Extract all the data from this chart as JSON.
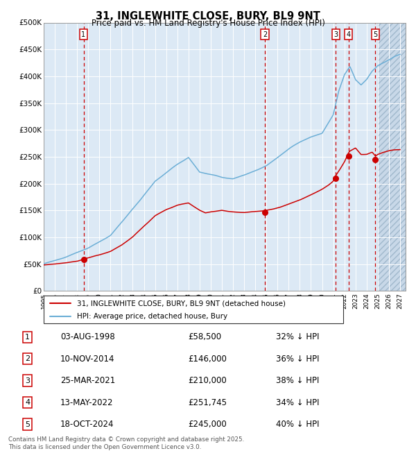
{
  "title_line1": "31, INGLEWHITE CLOSE, BURY, BL9 9NT",
  "title_line2": "Price paid vs. HM Land Registry's House Price Index (HPI)",
  "xlim": [
    1995.0,
    2027.5
  ],
  "ylim": [
    0,
    500000
  ],
  "yticks": [
    0,
    50000,
    100000,
    150000,
    200000,
    250000,
    300000,
    350000,
    400000,
    450000,
    500000
  ],
  "ytick_labels": [
    "£0",
    "£50K",
    "£100K",
    "£150K",
    "£200K",
    "£250K",
    "£300K",
    "£350K",
    "£400K",
    "£450K",
    "£500K"
  ],
  "hpi_color": "#6baed6",
  "price_color": "#cc0000",
  "bg_color": "#dce9f5",
  "grid_color": "#ffffff",
  "vline_color": "#cc0000",
  "sale_points": [
    {
      "year": 1998.58,
      "price": 58500,
      "label": "1"
    },
    {
      "year": 2014.86,
      "price": 146000,
      "label": "2"
    },
    {
      "year": 2021.23,
      "price": 210000,
      "label": "3"
    },
    {
      "year": 2022.37,
      "price": 251745,
      "label": "4"
    },
    {
      "year": 2024.79,
      "price": 245000,
      "label": "5"
    }
  ],
  "table_rows": [
    {
      "num": "1",
      "date": "03-AUG-1998",
      "price": "£58,500",
      "hpi": "32% ↓ HPI"
    },
    {
      "num": "2",
      "date": "10-NOV-2014",
      "price": "£146,000",
      "hpi": "36% ↓ HPI"
    },
    {
      "num": "3",
      "date": "25-MAR-2021",
      "price": "£210,000",
      "hpi": "38% ↓ HPI"
    },
    {
      "num": "4",
      "date": "13-MAY-2022",
      "price": "£251,745",
      "hpi": "34% ↓ HPI"
    },
    {
      "num": "5",
      "date": "18-OCT-2024",
      "price": "£245,000",
      "hpi": "40% ↓ HPI"
    }
  ],
  "legend_line1": "31, INGLEWHITE CLOSE, BURY, BL9 9NT (detached house)",
  "legend_line2": "HPI: Average price, detached house, Bury",
  "footnote": "Contains HM Land Registry data © Crown copyright and database right 2025.\nThis data is licensed under the Open Government Licence v3.0.",
  "future_start": 2025.0
}
